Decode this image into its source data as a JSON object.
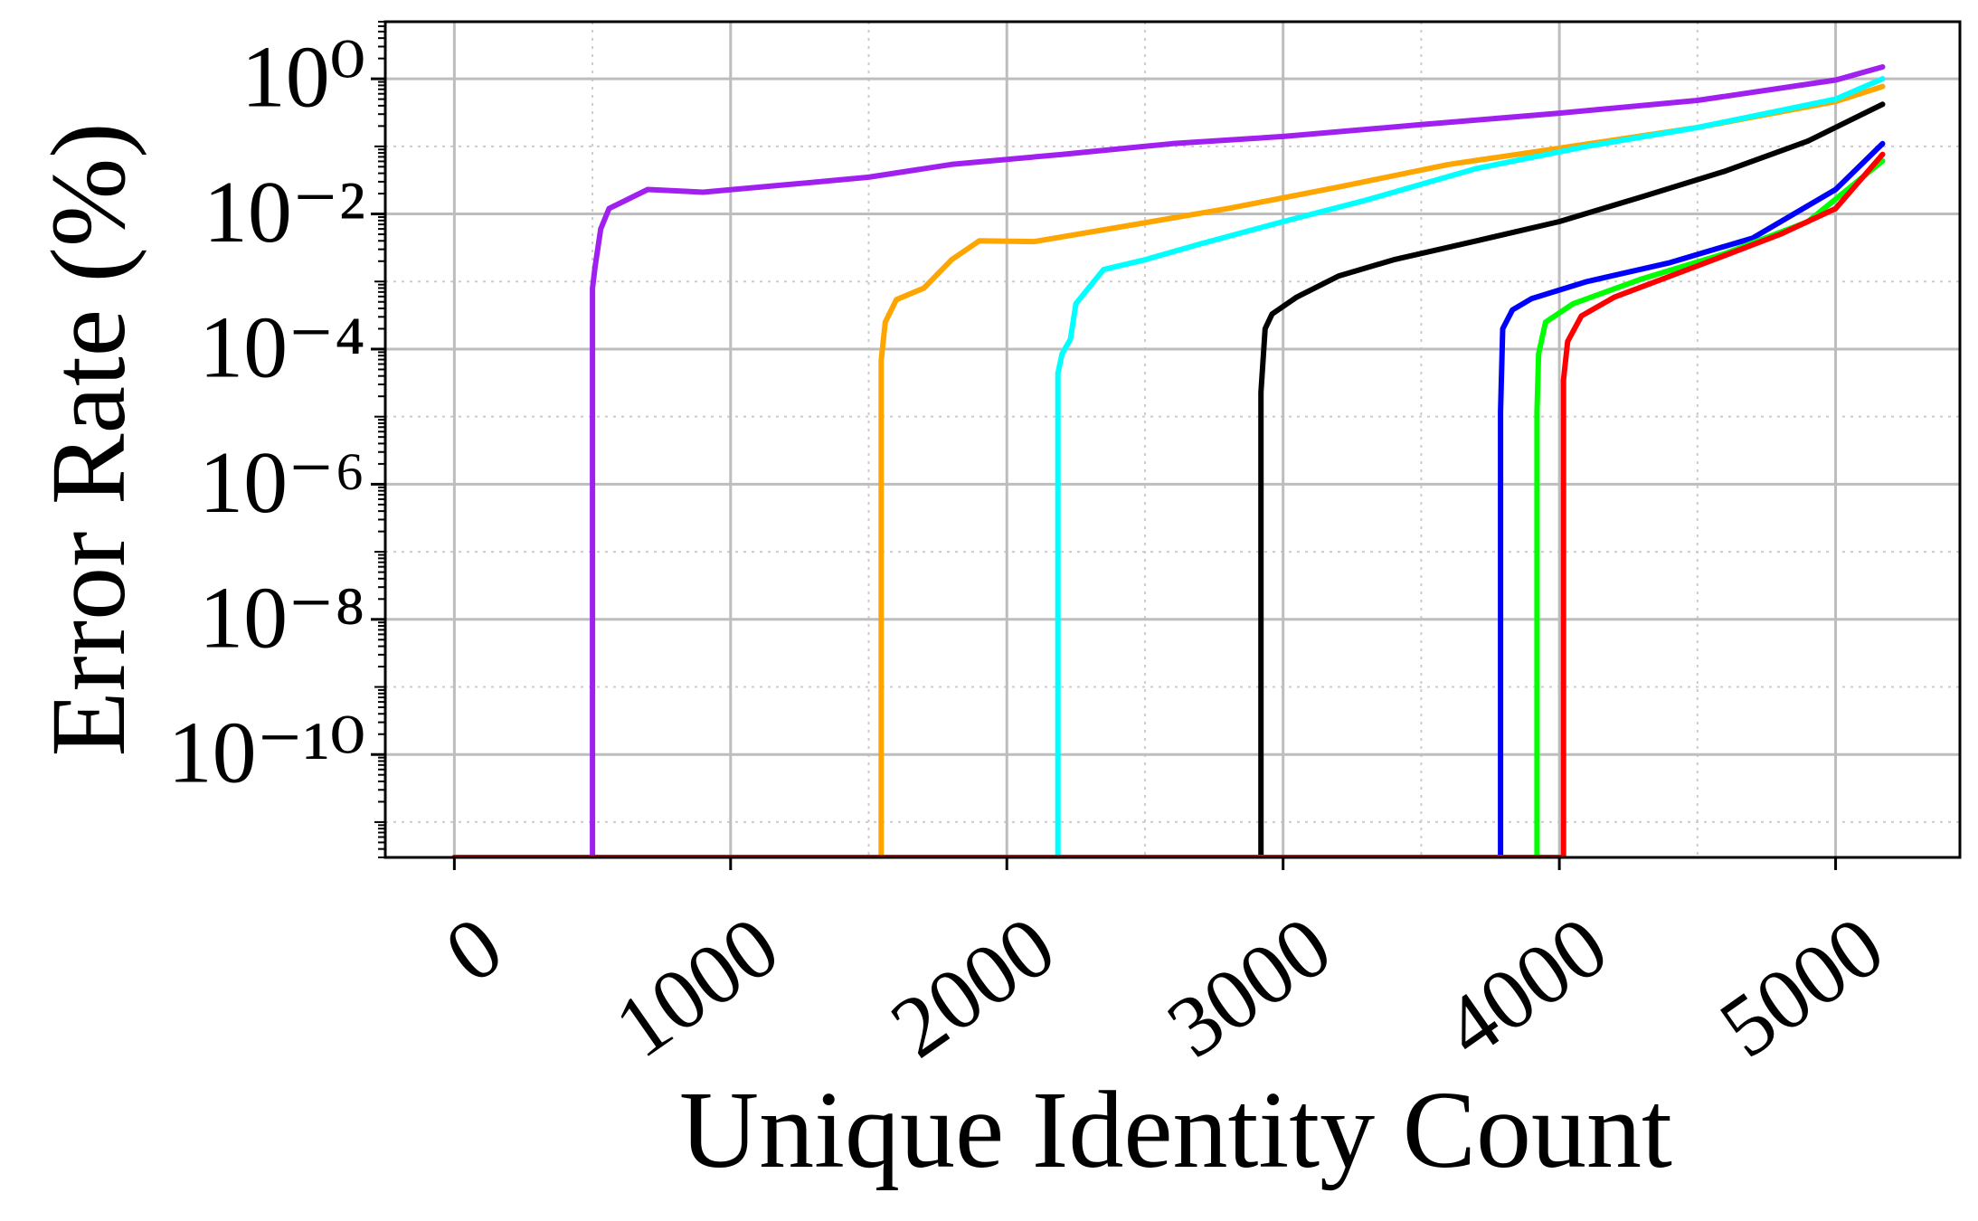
{
  "chart_data": {
    "type": "line",
    "x_label": "Unique Identity Count",
    "y_label": "Error Rate (%)",
    "xlim": [
      -250,
      5450
    ],
    "ylim": [
      3e-12,
      7
    ],
    "log_y": true,
    "grid": true,
    "minor_grid": true,
    "xticks": [
      0,
      1000,
      2000,
      3000,
      4000,
      5000
    ],
    "yticks": [
      {
        "value": 1e-10,
        "label": "10⁻¹⁰"
      },
      {
        "value": 1e-08,
        "label": "10⁻⁸"
      },
      {
        "value": 1e-06,
        "label": "10⁻⁶"
      },
      {
        "value": 0.0001,
        "label": "10⁻⁴"
      },
      {
        "value": 0.01,
        "label": "10⁻²"
      },
      {
        "value": 1,
        "label": "10⁰"
      }
    ],
    "series": [
      {
        "color": "#a020f0",
        "x": [
          0,
          500,
          500,
          510,
          530,
          560,
          700,
          900,
          1200,
          1500,
          1800,
          2200,
          2600,
          3000,
          3500,
          4000,
          4500,
          5000,
          5170
        ],
        "values": [
          3e-12,
          3e-12,
          0.0008,
          0.0017,
          0.006,
          0.012,
          0.023,
          0.021,
          0.027,
          0.035,
          0.054,
          0.076,
          0.11,
          0.14,
          0.21,
          0.31,
          0.48,
          0.96,
          1.5
        ]
      },
      {
        "color": "#ffa500",
        "x": [
          0,
          1545,
          1545,
          1560,
          1600,
          1700,
          1800,
          1900,
          2100,
          2400,
          2800,
          3200,
          3600,
          4000,
          4500,
          5000,
          5170
        ],
        "values": [
          3e-12,
          3e-12,
          6.8e-05,
          0.00025,
          0.00054,
          0.0008,
          0.0021,
          0.004,
          0.0039,
          0.0063,
          0.012,
          0.025,
          0.054,
          0.094,
          0.19,
          0.46,
          0.77
        ]
      },
      {
        "color": "#00ffff",
        "x": [
          0,
          2185,
          2185,
          2200,
          2230,
          2250,
          2350,
          2500,
          2700,
          3000,
          3300,
          3700,
          4100,
          4500,
          5000,
          5170
        ],
        "values": [
          3e-12,
          3e-12,
          4.4e-05,
          8.5e-05,
          0.00014,
          0.00047,
          0.0015,
          0.0021,
          0.0036,
          0.0077,
          0.016,
          0.047,
          0.1,
          0.19,
          0.5,
          1.0
        ]
      },
      {
        "color": "#000000",
        "x": [
          0,
          2920,
          2920,
          2935,
          2960,
          3050,
          3200,
          3400,
          3700,
          4000,
          4300,
          4600,
          4900,
          5170
        ],
        "values": [
          3e-12,
          3e-12,
          2.3e-05,
          0.0002,
          0.00033,
          0.00059,
          0.0012,
          0.0021,
          0.004,
          0.0077,
          0.018,
          0.043,
          0.12,
          0.42
        ]
      },
      {
        "color": "#0000ff",
        "x": [
          0,
          3787,
          3787,
          3795,
          3830,
          3900,
          4100,
          4400,
          4700,
          5000,
          5170
        ],
        "values": [
          3e-12,
          3e-12,
          1.2e-05,
          0.0002,
          0.00038,
          0.00056,
          0.001,
          0.0019,
          0.0044,
          0.023,
          0.11
        ]
      },
      {
        "color": "#00ff00",
        "x": [
          0,
          3919,
          3919,
          3925,
          3950,
          4050,
          4300,
          4600,
          4900,
          5170
        ],
        "values": [
          3e-12,
          3e-12,
          1.2e-05,
          8.5e-05,
          0.00025,
          0.00047,
          0.0011,
          0.0026,
          0.0077,
          0.061
        ]
      },
      {
        "color": "#ff0000",
        "x": [
          0,
          4015,
          4015,
          4030,
          4080,
          4200,
          4500,
          4800,
          5000,
          5170
        ],
        "values": [
          3e-12,
          3e-12,
          3.5e-05,
          0.00013,
          0.00031,
          0.00059,
          0.0017,
          0.005,
          0.012,
          0.076
        ]
      }
    ]
  }
}
